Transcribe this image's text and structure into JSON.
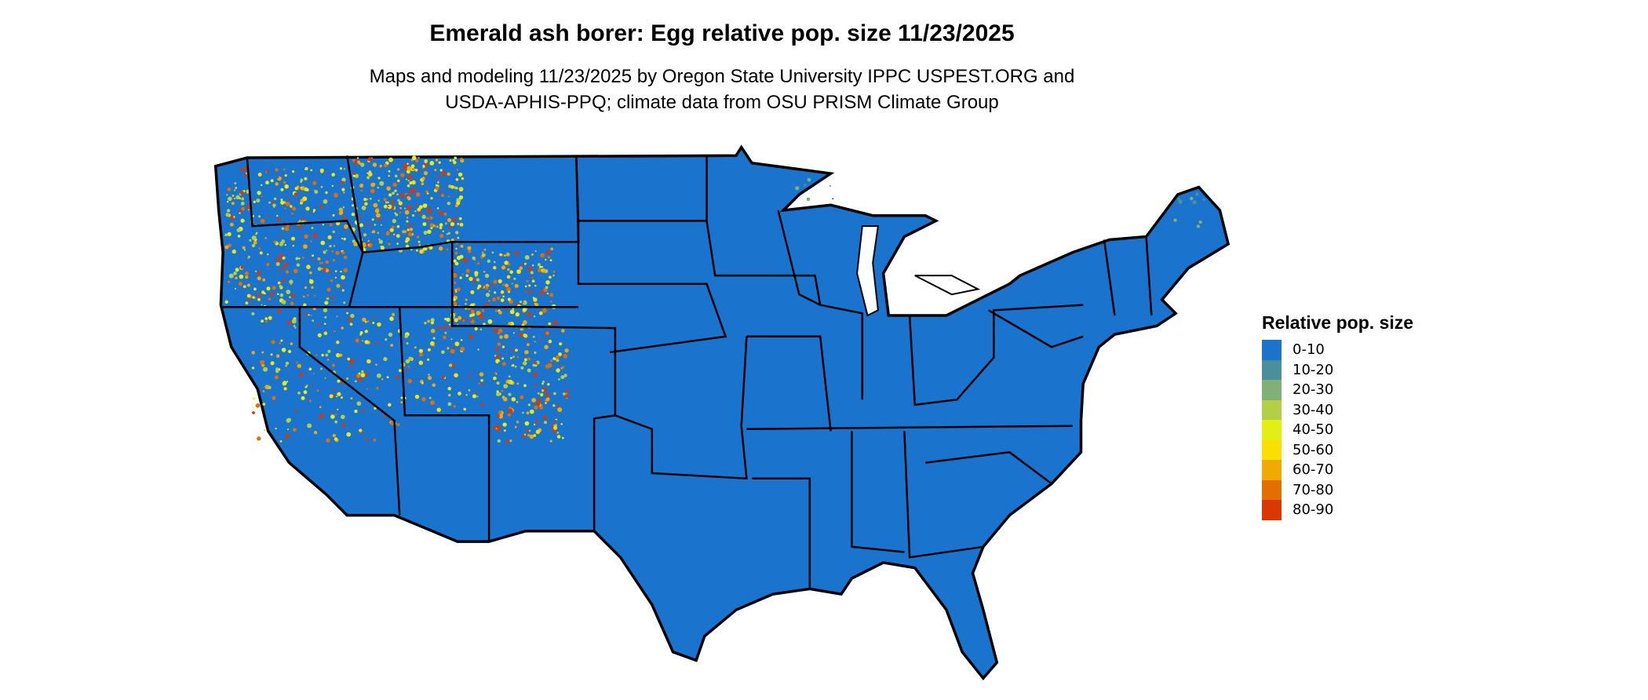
{
  "title": "Emerald ash borer: Egg relative pop. size 11/23/2025",
  "subtitle_line1": "Maps and modeling 11/23/2025 by Oregon State University IPPC USPEST.ORG and",
  "subtitle_line2": "USDA-APHIS-PPQ; climate data from OSU PRISM Climate Group",
  "map": {
    "region": "Contiguous United States",
    "base_color": "#1a73cc",
    "border_color": "#000000"
  },
  "legend": {
    "title": "Relative pop. size",
    "items": [
      {
        "label": "0-10",
        "color": "#1a73cc"
      },
      {
        "label": "10-20",
        "color": "#4a8f9c"
      },
      {
        "label": "20-30",
        "color": "#7eb077"
      },
      {
        "label": "30-40",
        "color": "#b2d046"
      },
      {
        "label": "40-50",
        "color": "#e4ee14"
      },
      {
        "label": "50-60",
        "color": "#fae000"
      },
      {
        "label": "60-70",
        "color": "#f0aa00"
      },
      {
        "label": "70-80",
        "color": "#e36f00"
      },
      {
        "label": "80-90",
        "color": "#db3700"
      }
    ]
  }
}
